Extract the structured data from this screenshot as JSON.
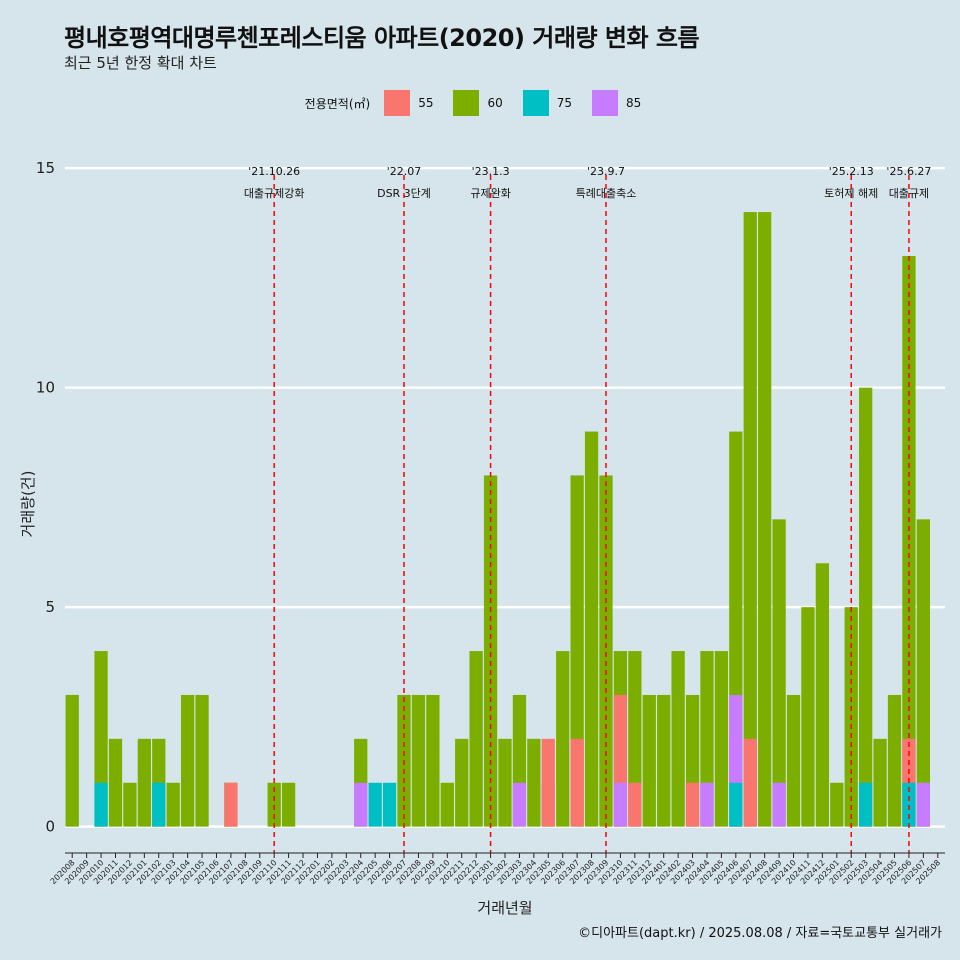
{
  "title": "평내호평역대명루첸포레스티움 아파트(2020) 거래량 변화 흐름",
  "subtitle": "최근 5년 한정 확대 차트",
  "caption": "©디아파트(dapt.kr) / 2025.08.08 / 자료=국토교통부 실거래가",
  "legend": {
    "title": "전용면적(㎡)",
    "items": [
      {
        "label": "55",
        "color": "#f8766d"
      },
      {
        "label": "60",
        "color": "#7cae00"
      },
      {
        "label": "75",
        "color": "#00bfc4"
      },
      {
        "label": "85",
        "color": "#c77cff"
      }
    ]
  },
  "chart_data": {
    "type": "bar",
    "stacked": false,
    "xlabel": "거래년월",
    "ylabel": "거래량(건)",
    "ylim": [
      -0.6,
      15.3
    ],
    "yticks": [
      0,
      5,
      10,
      15
    ],
    "grid": true,
    "legend_position": "top",
    "categories": [
      "202008",
      "202009",
      "202010",
      "202011",
      "202012",
      "202101",
      "202102",
      "202103",
      "202104",
      "202105",
      "202106",
      "202107",
      "202108",
      "202109",
      "202110",
      "202111",
      "202112",
      "202201",
      "202202",
      "202203",
      "202204",
      "202205",
      "202206",
      "202207",
      "202208",
      "202209",
      "202210",
      "202211",
      "202212",
      "202301",
      "202302",
      "202303",
      "202304",
      "202305",
      "202306",
      "202307",
      "202308",
      "202309",
      "202310",
      "202311",
      "202312",
      "202401",
      "202402",
      "202403",
      "202404",
      "202405",
      "202406",
      "202407",
      "202408",
      "202409",
      "202410",
      "202411",
      "202412",
      "202501",
      "202502",
      "202503",
      "202504",
      "202505",
      "202506",
      "202507",
      "202508"
    ],
    "series": [
      {
        "name": "55",
        "color": "#f8766d",
        "values": [
          0,
          0,
          0,
          0,
          0,
          0,
          0,
          0,
          0,
          0,
          0,
          1,
          0,
          0,
          0,
          0,
          0,
          0,
          0,
          0,
          0,
          0,
          0,
          0,
          0,
          0,
          0,
          0,
          0,
          0,
          0,
          0,
          0,
          2,
          0,
          2,
          0,
          0,
          3,
          1,
          0,
          0,
          0,
          1,
          0,
          0,
          2,
          2,
          0,
          0,
          0,
          0,
          0,
          0,
          0,
          0,
          0,
          0,
          2,
          0,
          0
        ]
      },
      {
        "name": "60",
        "color": "#7cae00",
        "values": [
          3,
          0,
          4,
          2,
          1,
          2,
          2,
          1,
          3,
          3,
          0,
          1,
          0,
          0,
          1,
          1,
          0,
          0,
          0,
          0,
          2,
          0,
          0,
          3,
          3,
          3,
          1,
          2,
          4,
          8,
          2,
          3,
          2,
          1,
          4,
          8,
          9,
          8,
          4,
          4,
          3,
          3,
          4,
          3,
          4,
          4,
          9,
          14,
          14,
          7,
          3,
          5,
          6,
          1,
          5,
          10,
          2,
          3,
          13,
          7,
          0
        ]
      },
      {
        "name": "75",
        "color": "#00bfc4",
        "values": [
          0,
          0,
          1,
          0,
          0,
          0,
          1,
          0,
          0,
          0,
          0,
          0,
          0,
          0,
          0,
          0,
          0,
          0,
          0,
          0,
          0,
          1,
          1,
          0,
          0,
          0,
          0,
          0,
          0,
          0,
          0,
          0,
          0,
          0,
          0,
          0,
          0,
          0,
          0,
          0,
          0,
          0,
          0,
          0,
          0,
          0,
          1,
          0,
          0,
          0,
          0,
          0,
          0,
          0,
          0,
          1,
          0,
          0,
          1,
          0,
          0
        ]
      },
      {
        "name": "85",
        "color": "#c77cff",
        "values": [
          0,
          0,
          0,
          0,
          0,
          0,
          0,
          0,
          0,
          0,
          0,
          0,
          0,
          0,
          0,
          0,
          0,
          0,
          0,
          0,
          1,
          0,
          0,
          0,
          0,
          0,
          0,
          0,
          0,
          0,
          0,
          1,
          0,
          0,
          0,
          0,
          0,
          0,
          1,
          0,
          0,
          0,
          0,
          0,
          1,
          0,
          3,
          0,
          0,
          1,
          0,
          0,
          0,
          0,
          0,
          0,
          0,
          0,
          0,
          1,
          0
        ]
      }
    ],
    "annotations": [
      {
        "date": "'21.10.26",
        "text": "대출규제강화",
        "x": "202110"
      },
      {
        "date": "'22.07",
        "text": "DSR 3단계",
        "x": "202207"
      },
      {
        "date": "'23.1.3",
        "text": "규제완화",
        "x": "202301"
      },
      {
        "date": "'23.9.7",
        "text": "특례대출축소",
        "x": "202309"
      },
      {
        "date": "'25.2.13",
        "text": "토허제 해제",
        "x": "202502"
      },
      {
        "date": "'25.6.27",
        "text": "대출규제",
        "x": "202506"
      }
    ]
  }
}
